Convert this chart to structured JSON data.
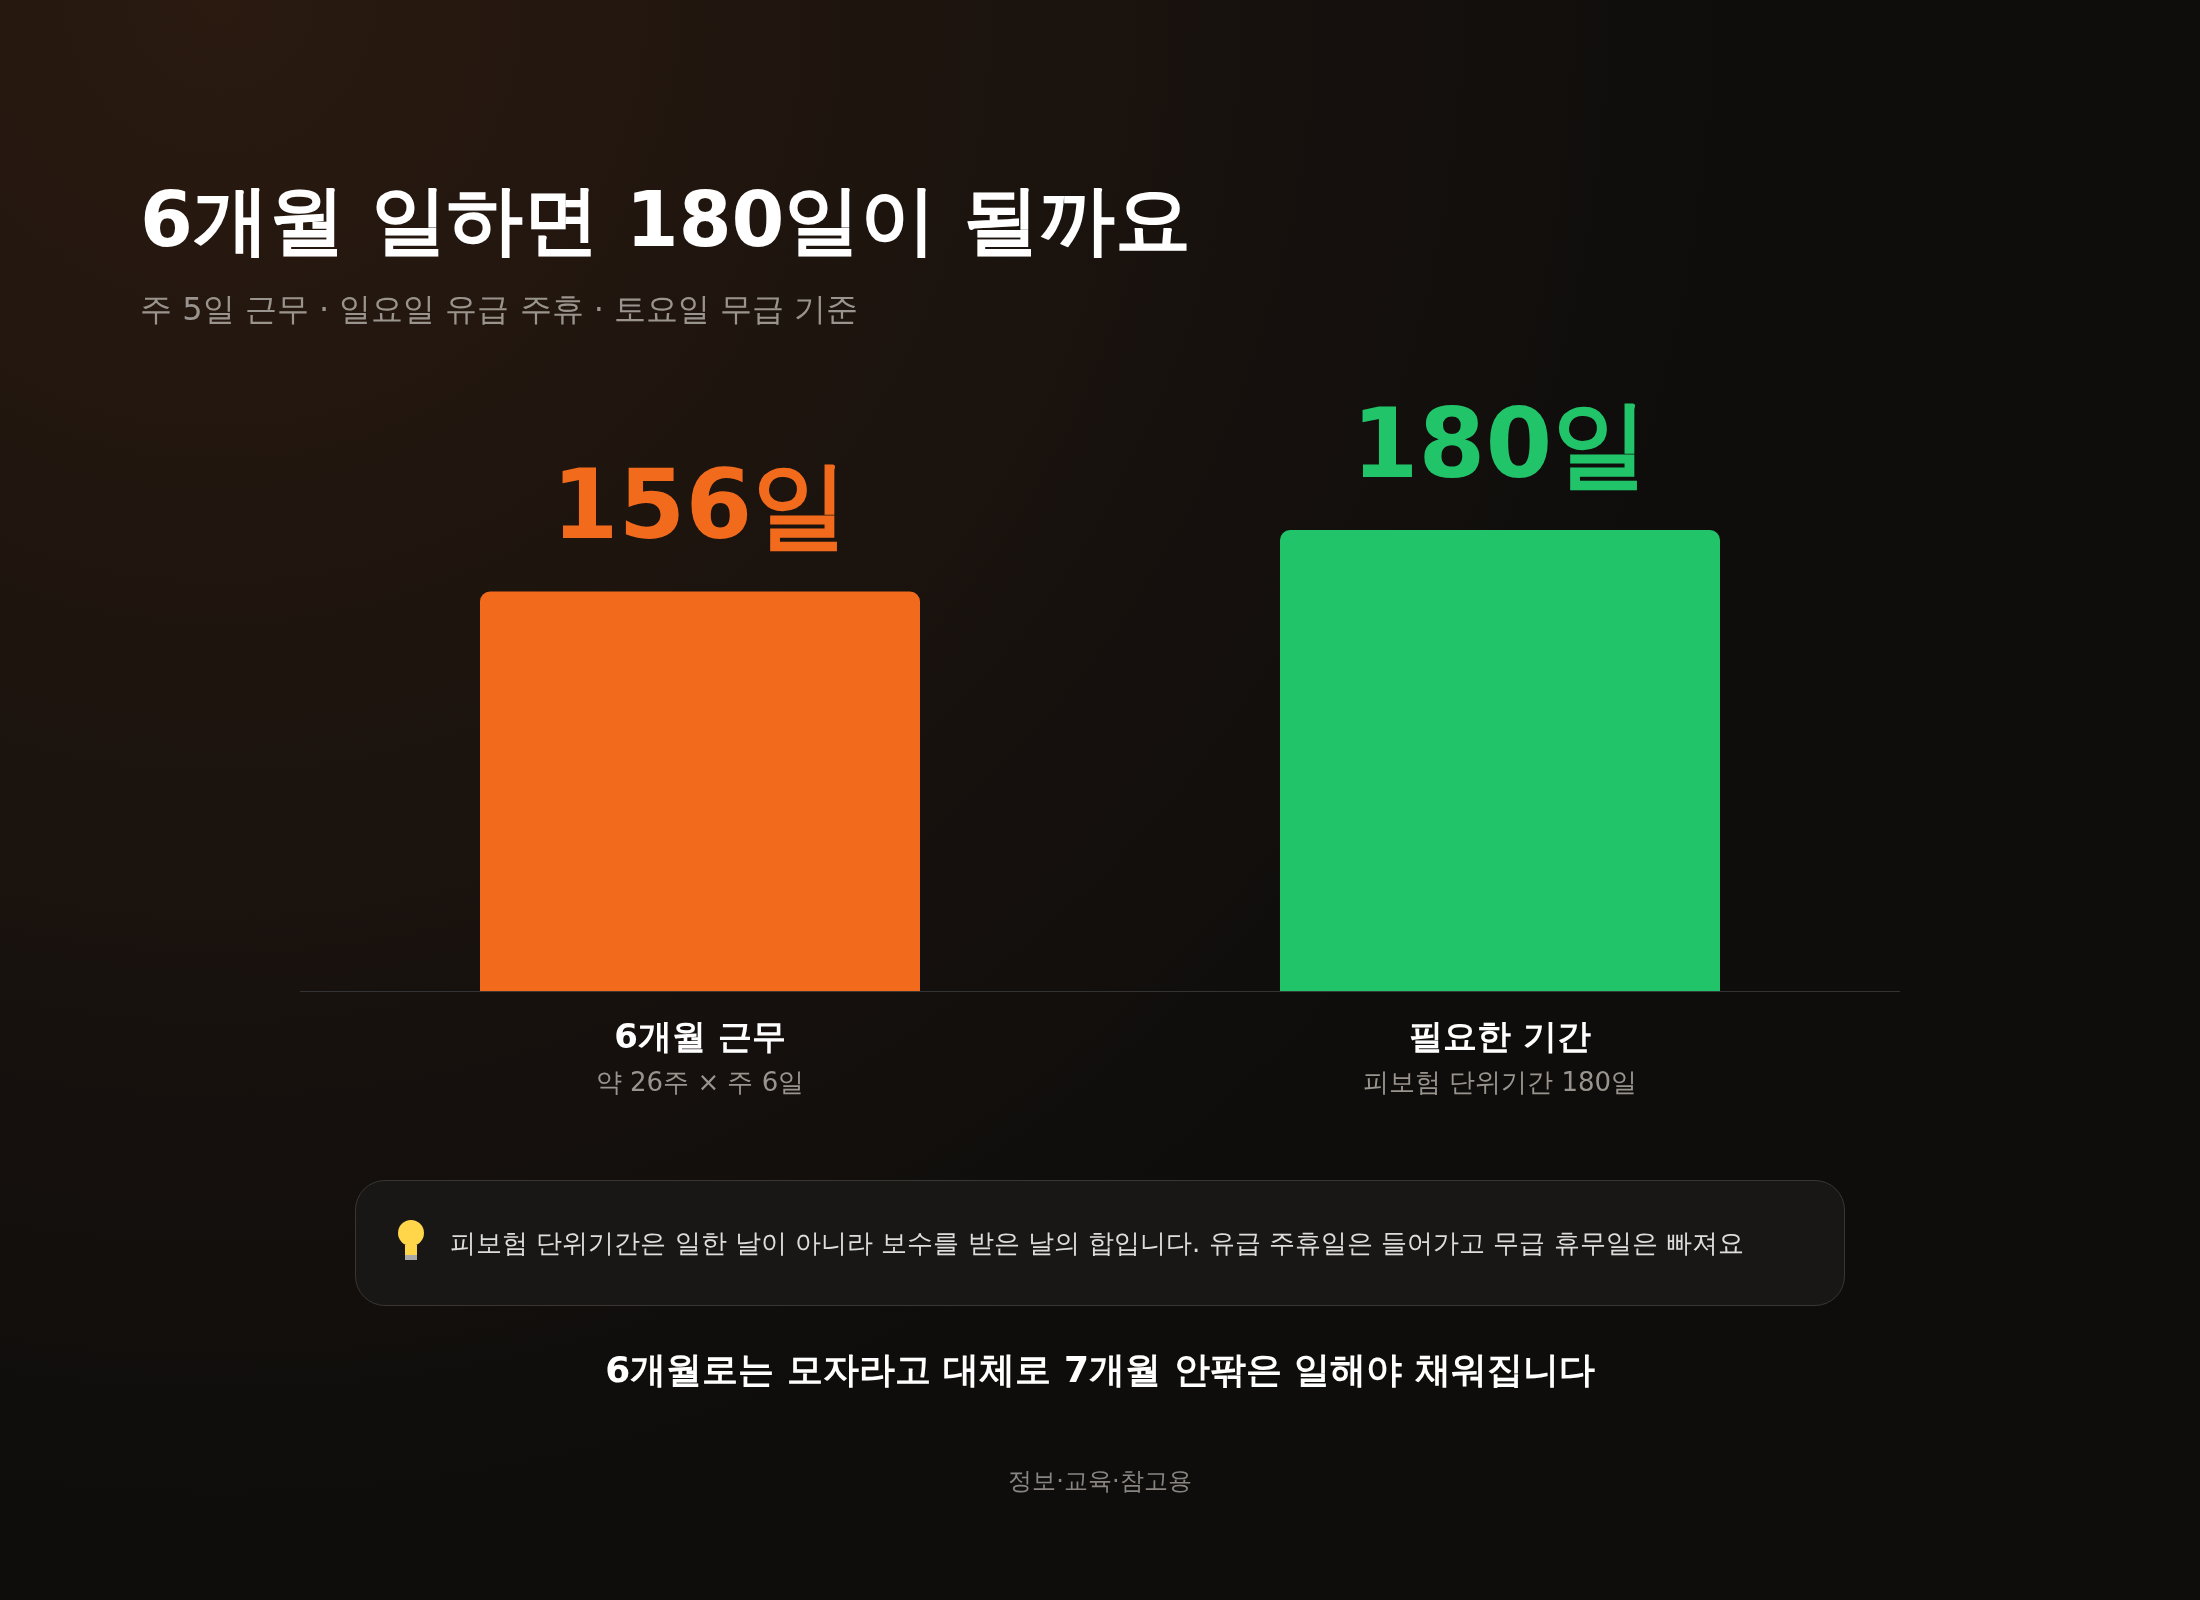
{
  "chart_data": {
    "type": "bar",
    "title": "6개월 일하면 180일이 될까요",
    "subtitle": "주 5일 근무 · 일요일 유급 주휴 · 토요일 무급 기준",
    "categories": [
      "6개월 근무",
      "필요한 기간"
    ],
    "values": [
      156,
      180
    ],
    "colors": [
      "#f26b1d",
      "#22c46a"
    ],
    "value_labels": [
      "156일",
      "180일"
    ],
    "legend": false,
    "annotations": [
      "약 26주 × 주 6일",
      "피보험 단위기간 180일",
      "피보험 단위기간은 일한 날이 아니라 보수를 받은 날의 합입니다. 유급 주휴일은 들어가고 무급 휴무일은 빠져요",
      "6개월로는 모자라고 대체로 7개월 안팎은 일해야 채워집니다",
      "정보·교육·참고용"
    ]
  }
}
